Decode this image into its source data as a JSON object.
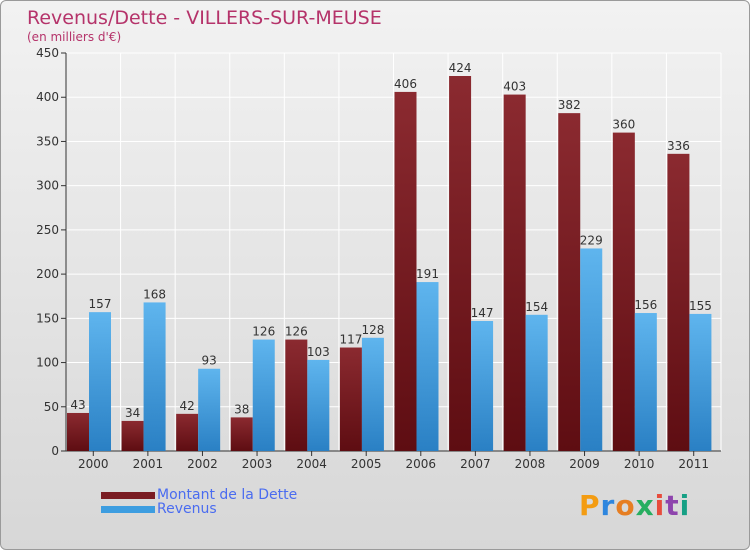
{
  "title": "Revenus/Dette - VILLERS-SUR-MEUSE",
  "subtitle": "(en milliers d'€)",
  "logo": {
    "letters": [
      "P",
      "r",
      "o",
      "x",
      "i",
      "t",
      "i"
    ],
    "colors": [
      "#f39c12",
      "#2e86de",
      "#e67e22",
      "#27ae60",
      "#e74c3c",
      "#8e44ad",
      "#16a085"
    ]
  },
  "colors": {
    "dette": "#7a1c22",
    "revenus": "#3d9de0",
    "title": "#b5336a",
    "legend_text": "#4a6cf0"
  },
  "legend": [
    {
      "label": "Montant de la Dette",
      "color": "#7a1c22"
    },
    {
      "label": "Revenus",
      "color": "#3d9de0"
    }
  ],
  "chart_data": {
    "type": "bar",
    "title": "Revenus/Dette - VILLERS-SUR-MEUSE",
    "ylabel": "(en milliers d'€)",
    "xlabel": "",
    "categories": [
      "2000",
      "2001",
      "2002",
      "2003",
      "2004",
      "2005",
      "2006",
      "2007",
      "2008",
      "2009",
      "2010",
      "2011"
    ],
    "series": [
      {
        "name": "Montant de la Dette",
        "values": [
          43,
          34,
          42,
          38,
          126,
          117,
          406,
          424,
          403,
          382,
          360,
          336
        ]
      },
      {
        "name": "Revenus",
        "values": [
          157,
          168,
          93,
          126,
          103,
          128,
          191,
          147,
          154,
          229,
          156,
          155
        ]
      }
    ],
    "ylim": [
      0,
      450
    ],
    "yticks": [
      0,
      50,
      100,
      150,
      200,
      250,
      300,
      350,
      400,
      450
    ],
    "grid": true,
    "legend_position": "bottom-left"
  }
}
